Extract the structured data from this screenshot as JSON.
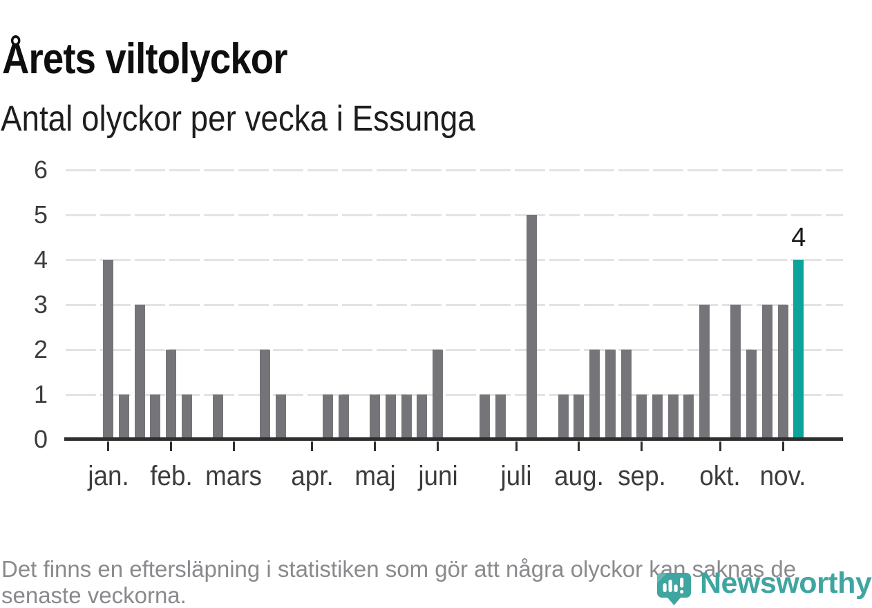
{
  "header": {
    "title": "Årets viltolyckor",
    "subtitle": "Antal olyckor per vecka i Essunga"
  },
  "footnote": {
    "line1": "Det finns en eftersläpning i statistiken som gör att några olyckor kan saknas de",
    "line2": "senaste veckorna."
  },
  "brand": {
    "name": "Newsworthy",
    "icon": "map-pin-bar-chart-icon"
  },
  "colors": {
    "title": "#0e0e0e",
    "subtitle": "#1d1d1d",
    "bar": "#757479",
    "bar_highlight": "#0ca39b",
    "axis": "#2e2e2e",
    "grid": "#e3e3e3",
    "axis_label": "#3c3c3c",
    "value_label": "#1a1a1a",
    "footnote_text": "#8a898d",
    "brand_teal": "#3ea5a0"
  },
  "chart_data": {
    "type": "bar",
    "title": "Årets viltolyckor",
    "subtitle": "Antal olyckor per vecka i Essunga",
    "x_unit": "vecka (week of year, 1-45)",
    "values": [
      4,
      1,
      3,
      1,
      2,
      1,
      0,
      1,
      0,
      0,
      2,
      1,
      0,
      0,
      1,
      1,
      0,
      1,
      1,
      1,
      1,
      2,
      0,
      0,
      1,
      1,
      0,
      5,
      0,
      1,
      1,
      2,
      2,
      2,
      1,
      1,
      1,
      1,
      3,
      0,
      3,
      2,
      3,
      3,
      4
    ],
    "highlight_index": 44,
    "highlight_label": "4",
    "month_ticks": [
      {
        "label": "jan.",
        "week": 0
      },
      {
        "label": "feb.",
        "week": 4
      },
      {
        "label": "mars",
        "week": 8
      },
      {
        "label": "apr.",
        "week": 13
      },
      {
        "label": "maj",
        "week": 17
      },
      {
        "label": "juni",
        "week": 21
      },
      {
        "label": "juli",
        "week": 26
      },
      {
        "label": "aug.",
        "week": 30
      },
      {
        "label": "sep.",
        "week": 34
      },
      {
        "label": "okt.",
        "week": 39
      },
      {
        "label": "nov.",
        "week": 43
      }
    ],
    "yticks": [
      0,
      1,
      2,
      3,
      4,
      5,
      6
    ],
    "ylim": [
      0,
      6
    ],
    "grid": true,
    "legend": null
  }
}
